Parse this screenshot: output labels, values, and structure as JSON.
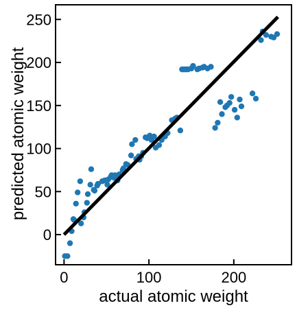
{
  "chart_data": {
    "type": "scatter",
    "xlabel": "actual atomic weight",
    "ylabel": "predicted atomic weight",
    "xlim": [
      -10,
      268
    ],
    "ylim": [
      -35,
      267
    ],
    "xticks": [
      0,
      100,
      200
    ],
    "yticks": [
      0,
      50,
      100,
      150,
      200,
      250
    ],
    "grid": false,
    "legend": "none",
    "marker_color": "#1f77b4",
    "line_color": "#000000",
    "reference_line": {
      "x": [
        0,
        252
      ],
      "y": [
        0,
        253
      ]
    },
    "series": [
      {
        "x": [
          1,
          4,
          7,
          9,
          11,
          12,
          14,
          16,
          19,
          20,
          23,
          24,
          27,
          28,
          31,
          32,
          35,
          36,
          39,
          40,
          45,
          48,
          51,
          52,
          55,
          56,
          59,
          60,
          63,
          64,
          65,
          69,
          70,
          73,
          75,
          79,
          80,
          84,
          85,
          88,
          89,
          91,
          93,
          96,
          98,
          101,
          103,
          106,
          108,
          112,
          115,
          119,
          122,
          127,
          131,
          133,
          137,
          139,
          140,
          142,
          144,
          146,
          150,
          152,
          157,
          159,
          163,
          165,
          169,
          173,
          178,
          181,
          184,
          186,
          190,
          192,
          195,
          197,
          201,
          204,
          207,
          209,
          222,
          226,
          232,
          234,
          238,
          244,
          247,
          251
        ],
        "y": [
          -25,
          -25,
          -10,
          4,
          18,
          17,
          36,
          49,
          62,
          13,
          20,
          26,
          37,
          47,
          58,
          76,
          52,
          51,
          57,
          59,
          62,
          63,
          58,
          64,
          67,
          69,
          66,
          69,
          63,
          68,
          70,
          75,
          77,
          82,
          81,
          92,
          105,
          110,
          88,
          91,
          87,
          91,
          95,
          113,
          112,
          115,
          110,
          114,
          101,
          104,
          110,
          114,
          118,
          133,
          135,
          136,
          121,
          192,
          192,
          192,
          192,
          192,
          193,
          196,
          192,
          193,
          194,
          195,
          193,
          195,
          124,
          130,
          154,
          140,
          148,
          150,
          153,
          160,
          145,
          136,
          157,
          149,
          164,
          158,
          226,
          236,
          232,
          230,
          229,
          233
        ]
      }
    ]
  }
}
